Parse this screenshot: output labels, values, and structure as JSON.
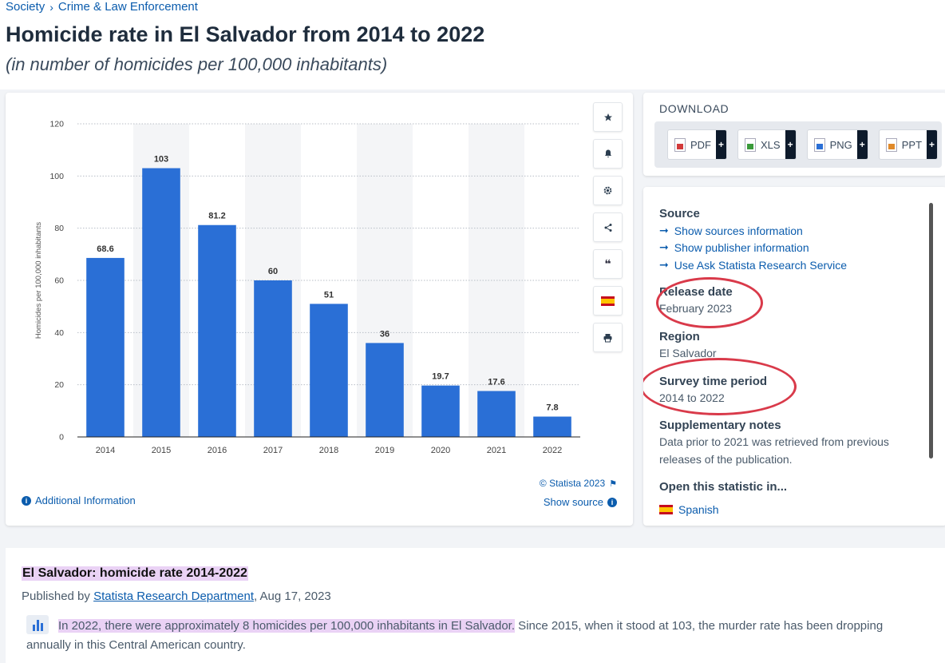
{
  "breadcrumb": {
    "items": [
      "Society",
      "Crime & Law Enforcement"
    ],
    "separator": "›"
  },
  "header": {
    "title": "Homicide rate in El Salvador from 2014 to 2022",
    "subtitle": "(in number of homicides per 100,000 inhabitants)"
  },
  "chart_data": {
    "type": "bar",
    "categories": [
      "2014",
      "2015",
      "2016",
      "2017",
      "2018",
      "2019",
      "2020",
      "2021",
      "2022"
    ],
    "values": [
      68.6,
      103,
      81.2,
      60,
      51,
      36,
      19.7,
      17.6,
      7.8
    ],
    "value_labels": [
      "68.6",
      "103",
      "81.2",
      "60",
      "51",
      "36",
      "19.7",
      "17.6",
      "7.8"
    ],
    "ylabel": "Homicides per 100,000 inhabitants",
    "xlabel": "",
    "ylim": [
      0,
      120
    ],
    "yticks": [
      0,
      20,
      40,
      60,
      80,
      100,
      120
    ],
    "bar_color": "#2a6fd6",
    "grid": true,
    "banded_background": true
  },
  "chart_footer": {
    "additional_info": "Additional Information",
    "copyright": "© Statista 2023",
    "show_source": "Show source"
  },
  "tools": {
    "icons": [
      "star-icon",
      "bell-icon",
      "gear-icon",
      "share-icon",
      "quote-icon",
      "spain-flag-icon",
      "print-icon"
    ]
  },
  "download": {
    "title": "DOWNLOAD",
    "buttons": [
      {
        "label": "PDF",
        "plus": "+",
        "color": "#d23a3a"
      },
      {
        "label": "XLS",
        "plus": "+",
        "color": "#3a9a3a"
      },
      {
        "label": "PNG",
        "plus": "+",
        "color": "#2a6fd6"
      },
      {
        "label": "PPT",
        "plus": "+",
        "color": "#e08a2a"
      }
    ]
  },
  "details": {
    "source_label": "Source",
    "links": [
      "Show sources information",
      "Show publisher information",
      "Use Ask Statista Research Service"
    ],
    "release_label": "Release date",
    "release_value": "February 2023",
    "region_label": "Region",
    "region_value": "El Salvador",
    "survey_label": "Survey time period",
    "survey_value": "2014 to 2022",
    "notes_label": "Supplementary notes",
    "notes_value": "Data prior to 2021 was retrieved from previous releases of the publication.",
    "open_label": "Open this statistic in...",
    "open_option": "Spanish"
  },
  "summary": {
    "title": "El Salvador: homicide rate 2014-2022",
    "published_prefix": "Published by",
    "publisher": "Statista Research Department",
    "published_date": ", Aug 17, 2023",
    "highlight": "In 2022, there were approximately 8 homicides per 100,000 inhabitants in El Salvador.",
    "rest": " Since 2015, when it stood at 103, the murder rate has been dropping annually in this Central American country."
  },
  "annotation_color": "#d93a4a"
}
